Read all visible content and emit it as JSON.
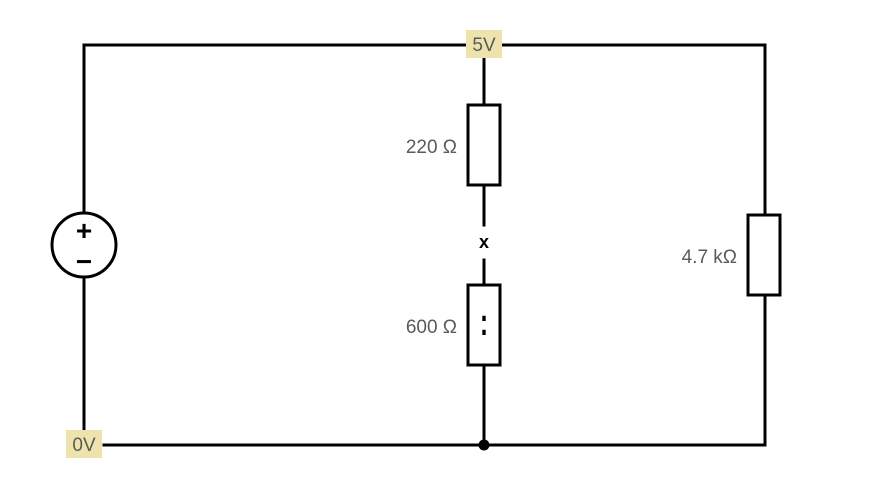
{
  "colors": {
    "wire": "#000000",
    "node_label_bg": "#efe3ad",
    "label_text": "#5a5a5a",
    "background": "#ffffff"
  },
  "nodes": {
    "top": "5V",
    "bottom": "0V"
  },
  "source": {
    "plus": "+",
    "minus": "−"
  },
  "resistors": {
    "upper": "220 Ω",
    "lower": "600 Ω",
    "right": "4.7 kΩ"
  },
  "break_marker": "x",
  "lower_resistor_marks": ":",
  "icons": {
    "source": "voltage-source-icon",
    "resistor": "resistor-icon",
    "junction": "junction-dot-icon",
    "break": "open-circuit-x-icon"
  }
}
